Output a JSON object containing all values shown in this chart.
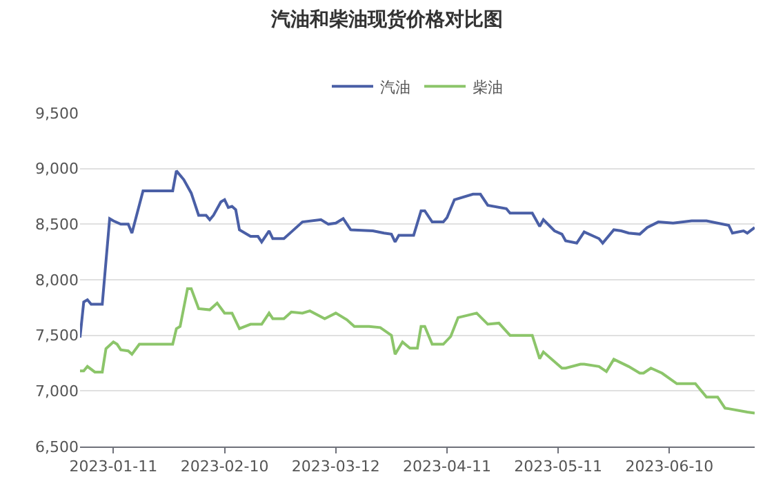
{
  "chart_data": {
    "type": "line",
    "title": "汽油和柴油现货价格对比图",
    "legend": "top",
    "grid": "y",
    "line_style": "solid",
    "xlim": [
      "2023-01-02",
      "2023-07-03"
    ],
    "xticks": [
      "2023-01-11",
      "2023-02-10",
      "2023-03-12",
      "2023-04-11",
      "2023-05-11",
      "2023-06-10"
    ],
    "ylim": [
      6500,
      9500
    ],
    "yticks": [
      {
        "value": 6500,
        "label": "6,500"
      },
      {
        "value": 7000,
        "label": "7,000"
      },
      {
        "value": 7500,
        "label": "7,500"
      },
      {
        "value": 8000,
        "label": "8,000"
      },
      {
        "value": 8500,
        "label": "8,500"
      },
      {
        "value": 9000,
        "label": "9,000"
      },
      {
        "value": 9500,
        "label": "9,500"
      }
    ],
    "series": [
      {
        "name": "汽油",
        "color": "#4a5fa6",
        "x": [
          "2023-01-02",
          "2023-01-03",
          "2023-01-04",
          "2023-01-05",
          "2023-01-08",
          "2023-01-10",
          "2023-01-11",
          "2023-01-13",
          "2023-01-15",
          "2023-01-16",
          "2023-01-19",
          "2023-01-27",
          "2023-01-28",
          "2023-01-30",
          "2023-02-01",
          "2023-02-03",
          "2023-02-05",
          "2023-02-06",
          "2023-02-07",
          "2023-02-09",
          "2023-02-10",
          "2023-02-11",
          "2023-02-12",
          "2023-02-13",
          "2023-02-14",
          "2023-02-17",
          "2023-02-19",
          "2023-02-20",
          "2023-02-22",
          "2023-02-23",
          "2023-02-26",
          "2023-02-28",
          "2023-03-03",
          "2023-03-08",
          "2023-03-10",
          "2023-03-12",
          "2023-03-14",
          "2023-03-16",
          "2023-03-22",
          "2023-03-25",
          "2023-03-27",
          "2023-03-28",
          "2023-03-29",
          "2023-04-02",
          "2023-04-04",
          "2023-04-05",
          "2023-04-07",
          "2023-04-10",
          "2023-04-11",
          "2023-04-13",
          "2023-04-18",
          "2023-04-20",
          "2023-04-22",
          "2023-04-27",
          "2023-04-28",
          "2023-05-04",
          "2023-05-06",
          "2023-05-07",
          "2023-05-10",
          "2023-05-12",
          "2023-05-13",
          "2023-05-16",
          "2023-05-18",
          "2023-05-22",
          "2023-05-23",
          "2023-05-26",
          "2023-05-28",
          "2023-05-30",
          "2023-06-02",
          "2023-06-04",
          "2023-06-07",
          "2023-06-11",
          "2023-06-16",
          "2023-06-20",
          "2023-06-26",
          "2023-06-27",
          "2023-06-30",
          "2023-07-01",
          "2023-07-03"
        ],
        "values": [
          7480,
          7800,
          7820,
          7780,
          7780,
          8550,
          8530,
          8500,
          8500,
          8420,
          8800,
          8800,
          8980,
          8900,
          8780,
          8580,
          8580,
          8540,
          8580,
          8700,
          8720,
          8650,
          8660,
          8630,
          8450,
          8390,
          8390,
          8340,
          8440,
          8370,
          8370,
          8430,
          8520,
          8540,
          8500,
          8510,
          8550,
          8450,
          8440,
          8420,
          8410,
          8340,
          8400,
          8400,
          8620,
          8620,
          8520,
          8520,
          8560,
          8720,
          8770,
          8770,
          8670,
          8640,
          8600,
          8600,
          8480,
          8540,
          8440,
          8410,
          8350,
          8330,
          8430,
          8370,
          8330,
          8450,
          8440,
          8420,
          8410,
          8470,
          8520,
          8510,
          8530,
          8530,
          8490,
          8420,
          8440,
          8420,
          8470
        ]
      },
      {
        "name": "柴油",
        "color": "#8cc56a",
        "x": [
          "2023-01-02",
          "2023-01-03",
          "2023-01-04",
          "2023-01-06",
          "2023-01-08",
          "2023-01-09",
          "2023-01-11",
          "2023-01-12",
          "2023-01-13",
          "2023-01-15",
          "2023-01-16",
          "2023-01-18",
          "2023-01-27",
          "2023-01-28",
          "2023-01-29",
          "2023-01-31",
          "2023-02-01",
          "2023-02-03",
          "2023-02-06",
          "2023-02-08",
          "2023-02-10",
          "2023-02-12",
          "2023-02-14",
          "2023-02-17",
          "2023-02-20",
          "2023-02-22",
          "2023-02-23",
          "2023-02-26",
          "2023-02-28",
          "2023-03-03",
          "2023-03-05",
          "2023-03-09",
          "2023-03-12",
          "2023-03-15",
          "2023-03-17",
          "2023-03-21",
          "2023-03-24",
          "2023-03-27",
          "2023-03-28",
          "2023-03-30",
          "2023-04-01",
          "2023-04-03",
          "2023-04-04",
          "2023-04-05",
          "2023-04-07",
          "2023-04-10",
          "2023-04-12",
          "2023-04-14",
          "2023-04-19",
          "2023-04-22",
          "2023-04-25",
          "2023-04-28",
          "2023-05-04",
          "2023-05-06",
          "2023-05-07",
          "2023-05-12",
          "2023-05-13",
          "2023-05-17",
          "2023-05-18",
          "2023-05-22",
          "2023-05-24",
          "2023-05-26",
          "2023-05-30",
          "2023-06-02",
          "2023-06-03",
          "2023-06-05",
          "2023-06-08",
          "2023-06-12",
          "2023-06-17",
          "2023-06-20",
          "2023-06-23",
          "2023-06-25",
          "2023-06-26",
          "2023-07-01",
          "2023-07-03"
        ],
        "values": [
          7180,
          7180,
          7220,
          7170,
          7170,
          7380,
          7440,
          7420,
          7370,
          7360,
          7330,
          7420,
          7420,
          7560,
          7580,
          7920,
          7920,
          7740,
          7730,
          7790,
          7700,
          7700,
          7560,
          7600,
          7600,
          7700,
          7650,
          7650,
          7710,
          7700,
          7720,
          7650,
          7700,
          7640,
          7580,
          7580,
          7570,
          7500,
          7330,
          7440,
          7385,
          7385,
          7580,
          7580,
          7420,
          7420,
          7490,
          7660,
          7700,
          7600,
          7610,
          7500,
          7500,
          7290,
          7350,
          7205,
          7205,
          7240,
          7240,
          7220,
          7175,
          7285,
          7220,
          7160,
          7160,
          7205,
          7160,
          7065,
          7065,
          6945,
          6945,
          6845,
          6840,
          6810,
          6800
        ]
      }
    ]
  }
}
